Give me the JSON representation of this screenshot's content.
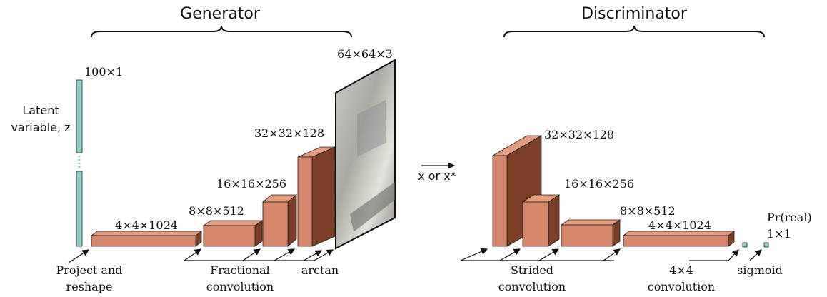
{
  "generator": {
    "title": "Generator",
    "latent": {
      "size": "100×1",
      "label": [
        "Latent",
        "variable, z"
      ]
    },
    "blocks": [
      "4×4×1024",
      "8×8×512",
      "16×16×256",
      "32×32×128"
    ],
    "image_size": "64×64×3",
    "ops": {
      "project": [
        "Project and",
        "reshape"
      ],
      "fractional": [
        "Fractional",
        "convolution"
      ],
      "activation": "arctan"
    }
  },
  "input_label": "x or x*",
  "discriminator": {
    "title": "Discriminator",
    "blocks": [
      "32×32×128",
      "16×16×256",
      "8×8×512",
      "4×4×1024"
    ],
    "output": {
      "label": "Pr(real)",
      "size": "1×1"
    },
    "ops": {
      "strided": [
        "Strided",
        "convolution"
      ],
      "final": [
        "4×4",
        "convolution"
      ],
      "activation": "sigmoid"
    }
  }
}
